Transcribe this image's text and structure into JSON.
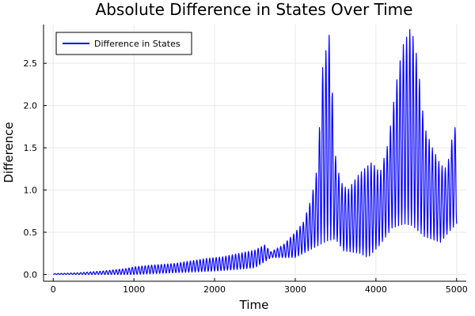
{
  "chart_data": {
    "type": "line",
    "title": "Absolute Difference in States Over Time",
    "xlabel": "Time",
    "ylabel": "Difference",
    "xlim": [
      -120,
      5120
    ],
    "ylim": [
      -0.08,
      2.96
    ],
    "x_ticks": [
      0,
      1000,
      2000,
      3000,
      4000,
      5000
    ],
    "x_tick_labels": [
      "0",
      "1000",
      "2000",
      "3000",
      "4000",
      "5000"
    ],
    "y_ticks": [
      0,
      0.5,
      1.0,
      1.5,
      2.0,
      2.5
    ],
    "y_tick_labels": [
      "0.0",
      "0.5",
      "1.0",
      "1.5",
      "2.0",
      "2.5"
    ],
    "grid": true,
    "legend_position": "top-left",
    "series": [
      {
        "name": "Difference in States",
        "color": "#0000ff",
        "peak_envelope": [
          [
            0,
            0.01
          ],
          [
            300,
            0.02
          ],
          [
            600,
            0.04
          ],
          [
            900,
            0.07
          ],
          [
            1000,
            0.09
          ],
          [
            1200,
            0.11
          ],
          [
            1500,
            0.13
          ],
          [
            1700,
            0.16
          ],
          [
            1900,
            0.19
          ],
          [
            2100,
            0.21
          ],
          [
            2300,
            0.25
          ],
          [
            2500,
            0.29
          ],
          [
            2620,
            0.35
          ],
          [
            2700,
            0.27
          ],
          [
            2850,
            0.35
          ],
          [
            3000,
            0.5
          ],
          [
            3100,
            0.62
          ],
          [
            3200,
            0.9
          ],
          [
            3280,
            1.3
          ],
          [
            3330,
            2.4
          ],
          [
            3380,
            2.65
          ],
          [
            3410,
            2.85
          ],
          [
            3440,
            2.8
          ],
          [
            3480,
            1.5
          ],
          [
            3560,
            1.1
          ],
          [
            3650,
            1.0
          ],
          [
            3800,
            1.2
          ],
          [
            3950,
            1.33
          ],
          [
            4050,
            1.2
          ],
          [
            4150,
            1.55
          ],
          [
            4250,
            2.25
          ],
          [
            4330,
            2.7
          ],
          [
            4420,
            2.9
          ],
          [
            4470,
            2.8
          ],
          [
            4520,
            2.5
          ],
          [
            4600,
            1.75
          ],
          [
            4700,
            1.5
          ],
          [
            4800,
            1.3
          ],
          [
            4880,
            1.25
          ],
          [
            4950,
            1.65
          ],
          [
            5000,
            1.8
          ]
        ],
        "trough_envelope": [
          [
            0,
            0.0
          ],
          [
            600,
            0.0
          ],
          [
            1000,
            0.0
          ],
          [
            1500,
            0.02
          ],
          [
            2000,
            0.04
          ],
          [
            2300,
            0.06
          ],
          [
            2500,
            0.08
          ],
          [
            2620,
            0.15
          ],
          [
            2700,
            0.2
          ],
          [
            3000,
            0.2
          ],
          [
            3200,
            0.3
          ],
          [
            3400,
            0.4
          ],
          [
            3500,
            0.42
          ],
          [
            3600,
            0.28
          ],
          [
            3800,
            0.25
          ],
          [
            3900,
            0.2
          ],
          [
            4050,
            0.35
          ],
          [
            4200,
            0.55
          ],
          [
            4350,
            0.6
          ],
          [
            4450,
            0.58
          ],
          [
            4600,
            0.45
          ],
          [
            4800,
            0.38
          ],
          [
            4900,
            0.5
          ],
          [
            5000,
            0.6
          ]
        ]
      }
    ]
  }
}
